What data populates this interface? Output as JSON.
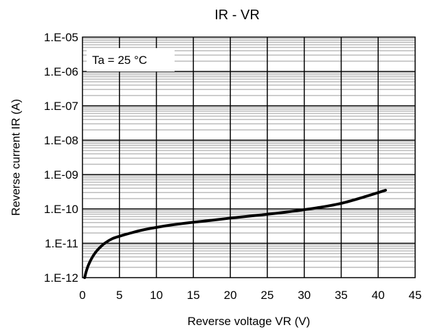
{
  "chart_data": {
    "type": "line",
    "title": "IR - VR",
    "xlabel": "Reverse voltage VR (V)",
    "ylabel": "Reverse current IR (A)",
    "xlim": [
      0,
      45
    ],
    "ylim": [
      1e-12,
      1e-05
    ],
    "yscale": "log",
    "grid": true,
    "x_ticks": [
      "0",
      "5",
      "10",
      "15",
      "20",
      "25",
      "30",
      "35",
      "40",
      "45"
    ],
    "y_ticks": [
      "1.E-12",
      "1.E-11",
      "1.E-10",
      "1.E-09",
      "1.E-08",
      "1.E-07",
      "1.E-06",
      "1.E-05"
    ],
    "annotation": "Ta = 25 °C",
    "series": [
      {
        "color": "#000000",
        "x": [
          0.3,
          0.5,
          0.8,
          1.2,
          1.7,
          2.3,
          3,
          4,
          5,
          6,
          8,
          10,
          12,
          15,
          18,
          20,
          22,
          25,
          28,
          30,
          32,
          35,
          38,
          41
        ],
        "y": [
          1e-12,
          1.5e-12,
          2.3e-12,
          3.5e-12,
          5.2e-12,
          7.3e-12,
          1e-11,
          1.35e-11,
          1.6e-11,
          1.85e-11,
          2.4e-11,
          2.9e-11,
          3.4e-11,
          4.1e-11,
          4.8e-11,
          5.4e-11,
          6e-11,
          7e-11,
          8.3e-11,
          9.5e-11,
          1.1e-10,
          1.45e-10,
          2.2e-10,
          3.5e-10
        ]
      }
    ]
  }
}
